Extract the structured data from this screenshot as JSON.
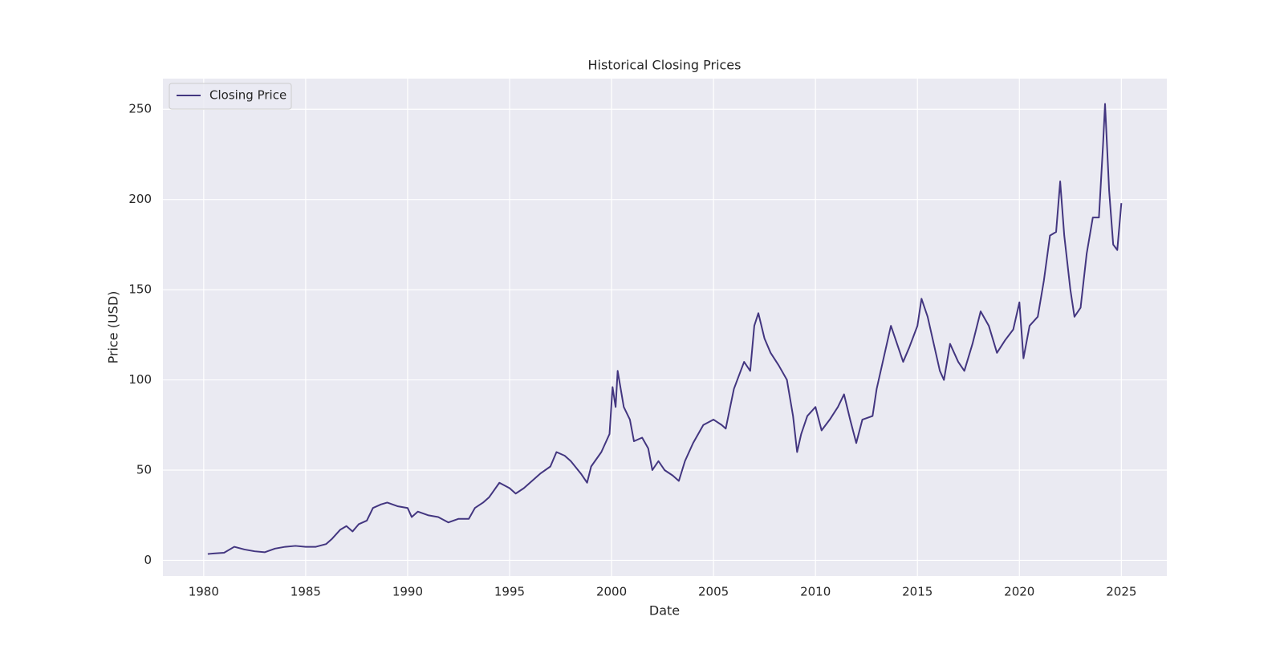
{
  "chart_data": {
    "type": "line",
    "title": "Historical Closing Prices",
    "xlabel": "Date",
    "ylabel": "Price (USD)",
    "x": [
      1980.2,
      1980.5,
      1981,
      1981.5,
      1982,
      1982.5,
      1983,
      1983.5,
      1984,
      1984.5,
      1985,
      1985.5,
      1986,
      1986.3,
      1986.7,
      1987,
      1987.3,
      1987.6,
      1988,
      1988.3,
      1988.7,
      1989,
      1989.5,
      1990,
      1990.2,
      1990.5,
      1991,
      1991.5,
      1992,
      1992.5,
      1993,
      1993.3,
      1993.7,
      1994,
      1994.5,
      1995,
      1995.3,
      1995.7,
      1996,
      1996.5,
      1997,
      1997.3,
      1997.7,
      1998,
      1998.5,
      1998.8,
      1999,
      1999.5,
      1999.9,
      2000.05,
      2000.2,
      2000.3,
      2000.6,
      2000.9,
      2001.1,
      2001.5,
      2001.8,
      2002,
      2002.3,
      2002.6,
      2003,
      2003.3,
      2003.6,
      2004,
      2004.5,
      2005,
      2005.4,
      2005.6,
      2006,
      2006.5,
      2006.8,
      2007,
      2007.2,
      2007.5,
      2007.8,
      2008.2,
      2008.6,
      2008.9,
      2009.1,
      2009.3,
      2009.6,
      2010,
      2010.3,
      2010.7,
      2011.1,
      2011.4,
      2011.7,
      2012,
      2012.3,
      2012.8,
      2013,
      2013.4,
      2013.7,
      2014,
      2014.3,
      2014.6,
      2015,
      2015.2,
      2015.5,
      2015.8,
      2016.1,
      2016.3,
      2016.6,
      2017,
      2017.3,
      2017.7,
      2018.1,
      2018.5,
      2018.9,
      2019.3,
      2019.7,
      2020,
      2020.2,
      2020.5,
      2020.9,
      2021.2,
      2021.5,
      2021.8,
      2022,
      2022.2,
      2022.5,
      2022.7,
      2023,
      2023.3,
      2023.6,
      2023.9,
      2024.1,
      2024.2,
      2024.4,
      2024.6,
      2024.8,
      2025
    ],
    "series": [
      {
        "name": "Closing Price",
        "color": "#433680",
        "values": [
          3.5,
          3.8,
          4.2,
          7.5,
          6,
          5,
          4.5,
          6.5,
          7.5,
          8,
          7.5,
          7.5,
          9,
          12,
          17,
          19,
          16,
          20,
          22,
          29,
          31,
          32,
          30,
          29,
          24,
          27,
          25,
          24,
          21,
          23,
          23,
          29,
          32,
          35,
          43,
          40,
          37,
          40,
          43,
          48,
          52,
          60,
          58,
          55,
          48,
          43,
          52,
          60,
          70,
          96,
          85,
          105,
          85,
          78,
          66,
          68,
          62,
          50,
          55,
          50,
          47,
          44,
          55,
          65,
          75,
          78,
          75,
          73,
          95,
          110,
          105,
          130,
          137,
          123,
          115,
          108,
          100,
          80,
          60,
          70,
          80,
          85,
          72,
          78,
          85,
          92,
          78,
          65,
          78,
          80,
          95,
          115,
          130,
          120,
          110,
          118,
          130,
          145,
          135,
          120,
          105,
          100,
          120,
          110,
          105,
          120,
          138,
          130,
          115,
          122,
          128,
          143,
          112,
          130,
          135,
          155,
          180,
          182,
          210,
          180,
          150,
          135,
          140,
          170,
          190,
          190,
          230,
          253,
          205,
          175,
          172,
          198
        ]
      }
    ],
    "xlim": [
      1978.0,
      2027.23
    ],
    "xticks": [
      1980,
      1985,
      1990,
      1995,
      2000,
      2005,
      2010,
      2015,
      2020,
      2025
    ],
    "ylim": [
      -8.7,
      267
    ],
    "yticks": [
      0,
      50,
      100,
      150,
      200,
      250
    ],
    "grid": true,
    "legend": "upper left"
  }
}
